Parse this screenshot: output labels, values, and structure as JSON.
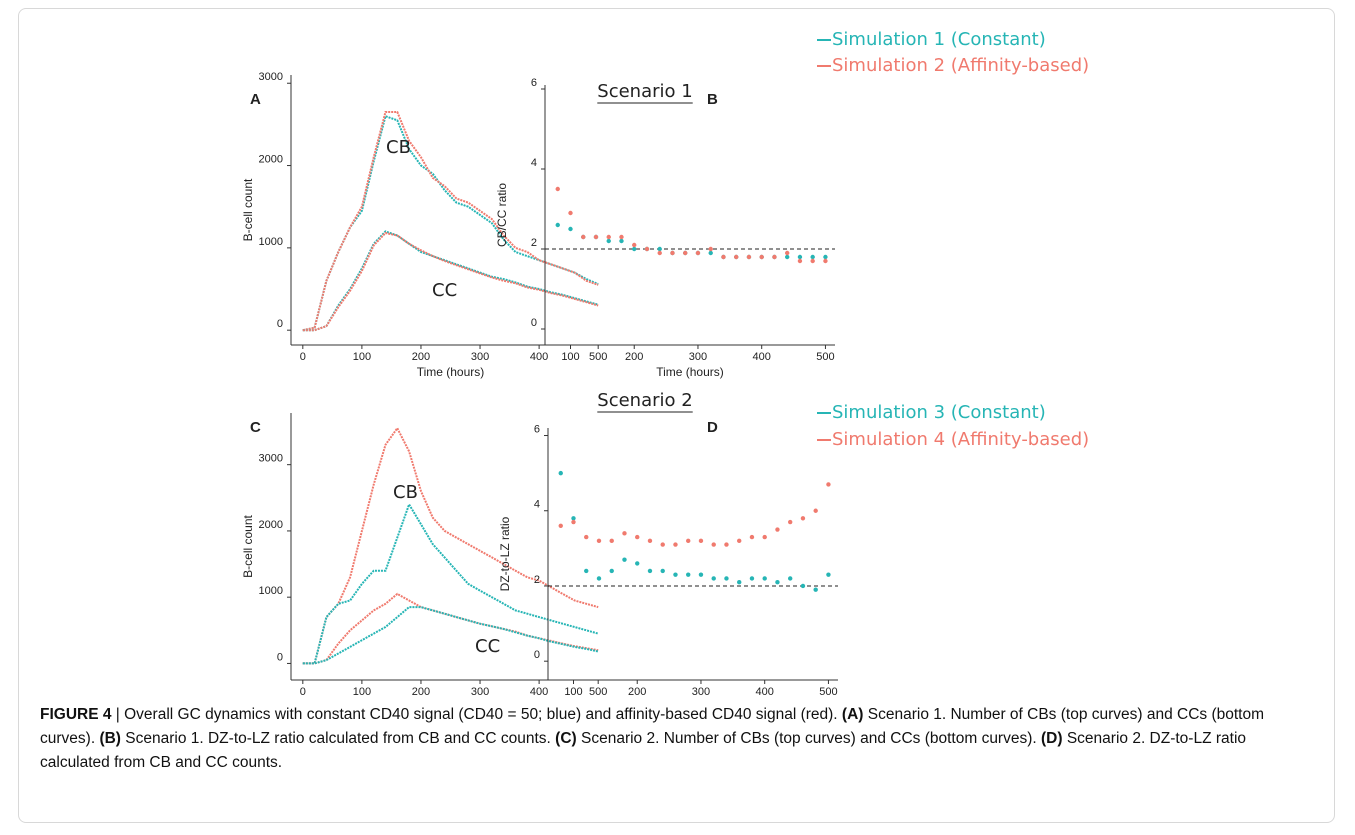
{
  "chart_data": [
    {
      "type": "line",
      "panel": "A",
      "xlabel": "Time (hours)",
      "ylabel": "B-cell count",
      "annotations": [
        "CB",
        "CC"
      ],
      "x": [
        0,
        20,
        40,
        60,
        80,
        100,
        120,
        140,
        160,
        180,
        200,
        220,
        240,
        260,
        280,
        300,
        320,
        340,
        360,
        380,
        400,
        420,
        440,
        460,
        480,
        500
      ],
      "series": [
        {
          "color": "#26b5b5",
          "values": [
            0,
            30,
            600,
            950,
            1250,
            1450,
            2050,
            2600,
            2550,
            2200,
            2000,
            1900,
            1700,
            1550,
            1500,
            1400,
            1300,
            1100,
            950,
            900,
            850,
            800,
            750,
            700,
            620,
            560
          ]
        },
        {
          "color": "#f07a6e",
          "values": [
            0,
            30,
            600,
            950,
            1250,
            1500,
            2100,
            2650,
            2650,
            2300,
            2100,
            1850,
            1750,
            1600,
            1550,
            1450,
            1350,
            1150,
            1000,
            950,
            850,
            800,
            750,
            700,
            600,
            550
          ]
        },
        {
          "color": "#26b5b5",
          "values": [
            0,
            0,
            50,
            300,
            500,
            750,
            1050,
            1200,
            1150,
            1050,
            950,
            900,
            850,
            800,
            750,
            700,
            650,
            620,
            580,
            530,
            500,
            460,
            430,
            390,
            350,
            310
          ]
        },
        {
          "color": "#f07a6e",
          "values": [
            0,
            0,
            50,
            280,
            480,
            720,
            1030,
            1180,
            1150,
            1050,
            970,
            900,
            840,
            790,
            740,
            690,
            640,
            600,
            570,
            520,
            490,
            450,
            420,
            380,
            340,
            300
          ]
        }
      ],
      "xlim": [
        -20,
        520
      ],
      "ylim": [
        -180,
        3100
      ],
      "xticks": [
        0,
        100,
        200,
        300,
        400,
        500
      ],
      "yticks": [
        0,
        1000,
        2000,
        3000
      ]
    },
    {
      "type": "scatter",
      "panel": "B",
      "legend_title": "Scenario 1",
      "xlabel": "Time (hours)",
      "ylabel": "CB/CC ratio",
      "hline": 2,
      "x": [
        80,
        100,
        120,
        140,
        160,
        180,
        200,
        220,
        240,
        260,
        280,
        300,
        320,
        340,
        360,
        380,
        400,
        420,
        440,
        460,
        480,
        500
      ],
      "series": [
        {
          "name": "Simulation 1 (Constant)",
          "color": "#26b5b5",
          "values": [
            2.6,
            2.5,
            2.3,
            2.3,
            2.2,
            2.2,
            2.0,
            2.0,
            2.0,
            1.9,
            1.9,
            1.9,
            1.9,
            1.8,
            1.8,
            1.8,
            1.8,
            1.8,
            1.8,
            1.8,
            1.8,
            1.8
          ]
        },
        {
          "name": "Simulation 2 (Affinity-based)",
          "color": "#f07a6e",
          "values": [
            3.5,
            2.9,
            2.3,
            2.3,
            2.3,
            2.3,
            2.1,
            2.0,
            1.9,
            1.9,
            1.9,
            1.9,
            2.0,
            1.8,
            1.8,
            1.8,
            1.8,
            1.8,
            1.9,
            1.7,
            1.7,
            1.7
          ]
        }
      ],
      "xlim": [
        60,
        515
      ],
      "ylim": [
        -0.4,
        6.1
      ],
      "xticks": [
        100,
        200,
        300,
        400,
        500
      ],
      "yticks": [
        0,
        2,
        4,
        6
      ]
    },
    {
      "type": "line",
      "panel": "C",
      "xlabel": "Time (hours)",
      "ylabel": "B-cell count",
      "annotations": [
        "CB",
        "CC"
      ],
      "x": [
        0,
        20,
        40,
        60,
        80,
        100,
        120,
        140,
        160,
        180,
        200,
        220,
        240,
        260,
        280,
        300,
        320,
        340,
        360,
        380,
        400,
        420,
        440,
        460,
        480,
        500
      ],
      "series": [
        {
          "color": "#f07a6e",
          "values": [
            0,
            0,
            700,
            900,
            1300,
            2000,
            2700,
            3300,
            3550,
            3200,
            2600,
            2200,
            2000,
            1900,
            1800,
            1700,
            1600,
            1500,
            1400,
            1300,
            1250,
            1150,
            1050,
            950,
            900,
            850
          ]
        },
        {
          "color": "#26b5b5",
          "values": [
            0,
            0,
            700,
            900,
            950,
            1200,
            1400,
            1400,
            1900,
            2400,
            2100,
            1800,
            1600,
            1400,
            1200,
            1100,
            1000,
            900,
            800,
            750,
            700,
            650,
            600,
            550,
            500,
            450
          ]
        },
        {
          "color": "#f07a6e",
          "values": [
            0,
            0,
            50,
            300,
            500,
            650,
            800,
            900,
            1050,
            950,
            850,
            800,
            750,
            700,
            650,
            600,
            560,
            520,
            480,
            420,
            380,
            340,
            300,
            260,
            230,
            200
          ]
        },
        {
          "color": "#26b5b5",
          "values": [
            0,
            0,
            50,
            150,
            250,
            350,
            450,
            550,
            700,
            850,
            850,
            800,
            750,
            700,
            650,
            600,
            560,
            520,
            470,
            420,
            380,
            330,
            290,
            250,
            220,
            180
          ]
        }
      ],
      "xlim": [
        -20,
        520
      ],
      "ylim": [
        -250,
        3780
      ],
      "xticks": [
        0,
        100,
        200,
        300,
        400,
        500
      ],
      "yticks": [
        0,
        1000,
        2000,
        3000
      ]
    },
    {
      "type": "scatter",
      "panel": "D",
      "legend_title": "Scenario 2",
      "xlabel": "Time (hours)",
      "ylabel": "DZ-to-LZ ratio",
      "hline": 2,
      "x": [
        80,
        100,
        120,
        140,
        160,
        180,
        200,
        220,
        240,
        260,
        280,
        300,
        320,
        340,
        360,
        380,
        400,
        420,
        440,
        460,
        480,
        500
      ],
      "series": [
        {
          "name": "Simulation 3 (Constant)",
          "color": "#26b5b5",
          "values": [
            5.0,
            3.8,
            2.4,
            2.2,
            2.4,
            2.7,
            2.6,
            2.4,
            2.4,
            2.3,
            2.3,
            2.3,
            2.2,
            2.2,
            2.1,
            2.2,
            2.2,
            2.1,
            2.2,
            2.0,
            1.9,
            2.3
          ]
        },
        {
          "name": "Simulation 4 (Affinity-based)",
          "color": "#f07a6e",
          "values": [
            3.6,
            3.7,
            3.3,
            3.2,
            3.2,
            3.4,
            3.3,
            3.2,
            3.1,
            3.1,
            3.2,
            3.2,
            3.1,
            3.1,
            3.2,
            3.3,
            3.3,
            3.5,
            3.7,
            3.8,
            4.0,
            4.7
          ]
        }
      ],
      "xlim": [
        60,
        515
      ],
      "ylim": [
        -0.5,
        6.2
      ],
      "xticks": [
        100,
        200,
        300,
        400,
        500
      ],
      "yticks": [
        0,
        2,
        4,
        6
      ]
    }
  ],
  "caption": {
    "segments": [
      {
        "text": "FIGURE 4",
        "bold": true
      },
      {
        "text": " | Overall GC dynamics with constant CD40 signal (CD40 = 50; blue) and affinity-based CD40 signal (red). ",
        "bold": false
      },
      {
        "text": "(A)",
        "bold": true
      },
      {
        "text": " Scenario 1. Number of CBs (top curves) and CCs (bottom curves). ",
        "bold": false
      },
      {
        "text": "(B)",
        "bold": true
      },
      {
        "text": " Scenario 1. DZ-to-LZ ratio calculated from CB and CC counts. ",
        "bold": false
      },
      {
        "text": "(C)",
        "bold": true
      },
      {
        "text": " Scenario 2. Number of CBs (top curves) and CCs (bottom curves). ",
        "bold": false
      },
      {
        "text": "(D)",
        "bold": true
      },
      {
        "text": " Scenario 2. DZ-to-LZ ratio calculated from CB and CC counts.",
        "bold": false
      }
    ]
  }
}
